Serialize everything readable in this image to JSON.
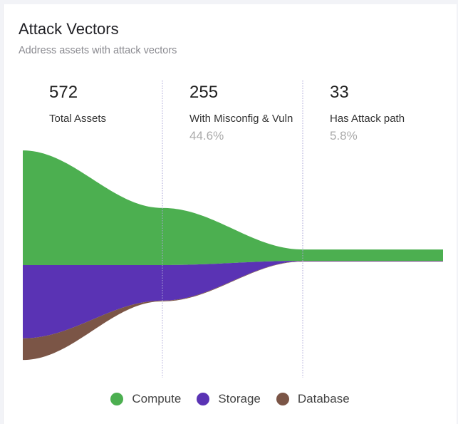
{
  "header": {
    "title": "Attack Vectors",
    "subtitle": "Address assets with attack vectors"
  },
  "chart_data": {
    "type": "funnel",
    "stages": [
      {
        "value": "572",
        "label": "Total Assets",
        "percent": ""
      },
      {
        "value": "255",
        "label": "With Misconfig & Vuln",
        "percent": "44.6%"
      },
      {
        "value": "33",
        "label": "Has Attack path",
        "percent": "5.8%"
      }
    ],
    "series": [
      {
        "name": "Compute",
        "color": "#4caf50",
        "values": [
          313,
          156,
          31
        ]
      },
      {
        "name": "Storage",
        "color": "#5a33b4",
        "values": [
          200,
          97,
          1
        ]
      },
      {
        "name": "Database",
        "color": "#7b5546",
        "values": [
          59,
          2,
          1
        ]
      }
    ]
  }
}
